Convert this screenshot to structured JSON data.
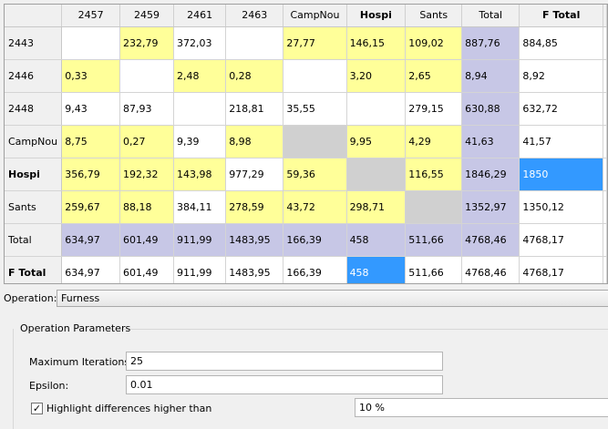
{
  "grid": {
    "columns": [
      {
        "label": "2457",
        "bold": false
      },
      {
        "label": "2459",
        "bold": false
      },
      {
        "label": "2461",
        "bold": false
      },
      {
        "label": "2463",
        "bold": false
      },
      {
        "label": "CampNou",
        "bold": false
      },
      {
        "label": "Hospi",
        "bold": true
      },
      {
        "label": "Sants",
        "bold": false
      },
      {
        "label": "Total",
        "bold": false
      },
      {
        "label": "F Total",
        "bold": true
      }
    ],
    "rows": [
      {
        "label": "2443",
        "bold": false,
        "cells": [
          {
            "v": "",
            "c": "white"
          },
          {
            "v": "232,79",
            "c": "yellow"
          },
          {
            "v": "372,03",
            "c": "white"
          },
          {
            "v": "",
            "c": "white"
          },
          {
            "v": "27,77",
            "c": "yellow"
          },
          {
            "v": "146,15",
            "c": "yellow"
          },
          {
            "v": "109,02",
            "c": "yellow"
          },
          {
            "v": "887,76",
            "c": "lav"
          },
          {
            "v": "884,85",
            "c": "white"
          }
        ]
      },
      {
        "label": "2446",
        "bold": false,
        "cells": [
          {
            "v": "0,33",
            "c": "yellow"
          },
          {
            "v": "",
            "c": "white"
          },
          {
            "v": "2,48",
            "c": "yellow"
          },
          {
            "v": "0,28",
            "c": "yellow"
          },
          {
            "v": "",
            "c": "white"
          },
          {
            "v": "3,20",
            "c": "yellow"
          },
          {
            "v": "2,65",
            "c": "yellow"
          },
          {
            "v": "8,94",
            "c": "lav"
          },
          {
            "v": "8,92",
            "c": "white"
          }
        ]
      },
      {
        "label": "2448",
        "bold": false,
        "cells": [
          {
            "v": "9,43",
            "c": "white"
          },
          {
            "v": "87,93",
            "c": "white"
          },
          {
            "v": "",
            "c": "white"
          },
          {
            "v": "218,81",
            "c": "white"
          },
          {
            "v": "35,55",
            "c": "white"
          },
          {
            "v": "",
            "c": "white"
          },
          {
            "v": "279,15",
            "c": "white"
          },
          {
            "v": "630,88",
            "c": "lav"
          },
          {
            "v": "632,72",
            "c": "white"
          }
        ]
      },
      {
        "label": "CampNou",
        "bold": false,
        "cells": [
          {
            "v": "8,75",
            "c": "yellow"
          },
          {
            "v": "0,27",
            "c": "yellow"
          },
          {
            "v": "9,39",
            "c": "white"
          },
          {
            "v": "8,98",
            "c": "yellow"
          },
          {
            "v": "",
            "c": "gray"
          },
          {
            "v": "9,95",
            "c": "yellow"
          },
          {
            "v": "4,29",
            "c": "yellow"
          },
          {
            "v": "41,63",
            "c": "lav"
          },
          {
            "v": "41,57",
            "c": "white"
          }
        ]
      },
      {
        "label": "Hospi",
        "bold": true,
        "cells": [
          {
            "v": "356,79",
            "c": "yellow"
          },
          {
            "v": "192,32",
            "c": "yellow"
          },
          {
            "v": "143,98",
            "c": "yellow"
          },
          {
            "v": "977,29",
            "c": "white"
          },
          {
            "v": "59,36",
            "c": "yellow"
          },
          {
            "v": "",
            "c": "gray"
          },
          {
            "v": "116,55",
            "c": "yellow"
          },
          {
            "v": "1846,29",
            "c": "lav"
          },
          {
            "v": "1850",
            "c": "blue"
          }
        ]
      },
      {
        "label": "Sants",
        "bold": false,
        "cells": [
          {
            "v": "259,67",
            "c": "yellow"
          },
          {
            "v": "88,18",
            "c": "yellow"
          },
          {
            "v": "384,11",
            "c": "white"
          },
          {
            "v": "278,59",
            "c": "yellow"
          },
          {
            "v": "43,72",
            "c": "yellow"
          },
          {
            "v": "298,71",
            "c": "yellow"
          },
          {
            "v": "",
            "c": "gray"
          },
          {
            "v": "1352,97",
            "c": "lav"
          },
          {
            "v": "1350,12",
            "c": "white"
          }
        ]
      },
      {
        "label": "Total",
        "bold": false,
        "cells": [
          {
            "v": "634,97",
            "c": "lav"
          },
          {
            "v": "601,49",
            "c": "lav"
          },
          {
            "v": "911,99",
            "c": "lav"
          },
          {
            "v": "1483,95",
            "c": "lav"
          },
          {
            "v": "166,39",
            "c": "lav"
          },
          {
            "v": "458",
            "c": "lav"
          },
          {
            "v": "511,66",
            "c": "lav"
          },
          {
            "v": "4768,46",
            "c": "lav"
          },
          {
            "v": "4768,17",
            "c": "white"
          }
        ]
      },
      {
        "label": "F Total",
        "bold": true,
        "cells": [
          {
            "v": "634,97",
            "c": "white"
          },
          {
            "v": "601,49",
            "c": "white"
          },
          {
            "v": "911,99",
            "c": "white"
          },
          {
            "v": "1483,95",
            "c": "white"
          },
          {
            "v": "166,39",
            "c": "white"
          },
          {
            "v": "458",
            "c": "blue"
          },
          {
            "v": "511,66",
            "c": "white"
          },
          {
            "v": "4768,46",
            "c": "white"
          },
          {
            "v": "4768,17",
            "c": "white"
          }
        ]
      }
    ]
  },
  "colors": {
    "yellow": "#ffff99",
    "lavender": "#c7c7e6",
    "gray": "#d0d0d0",
    "blue": "#3399ff"
  },
  "operation": {
    "label": "Operation:",
    "value": "Furness"
  },
  "params": {
    "title": "Operation Parameters",
    "max_iter_label": "Maximum Iterations:",
    "max_iter_value": "25",
    "epsilon_label": "Epsilon:",
    "epsilon_value": "0.01",
    "highlight_label": "Highlight differences higher than",
    "highlight_checked": true,
    "highlight_value": "10 %"
  }
}
